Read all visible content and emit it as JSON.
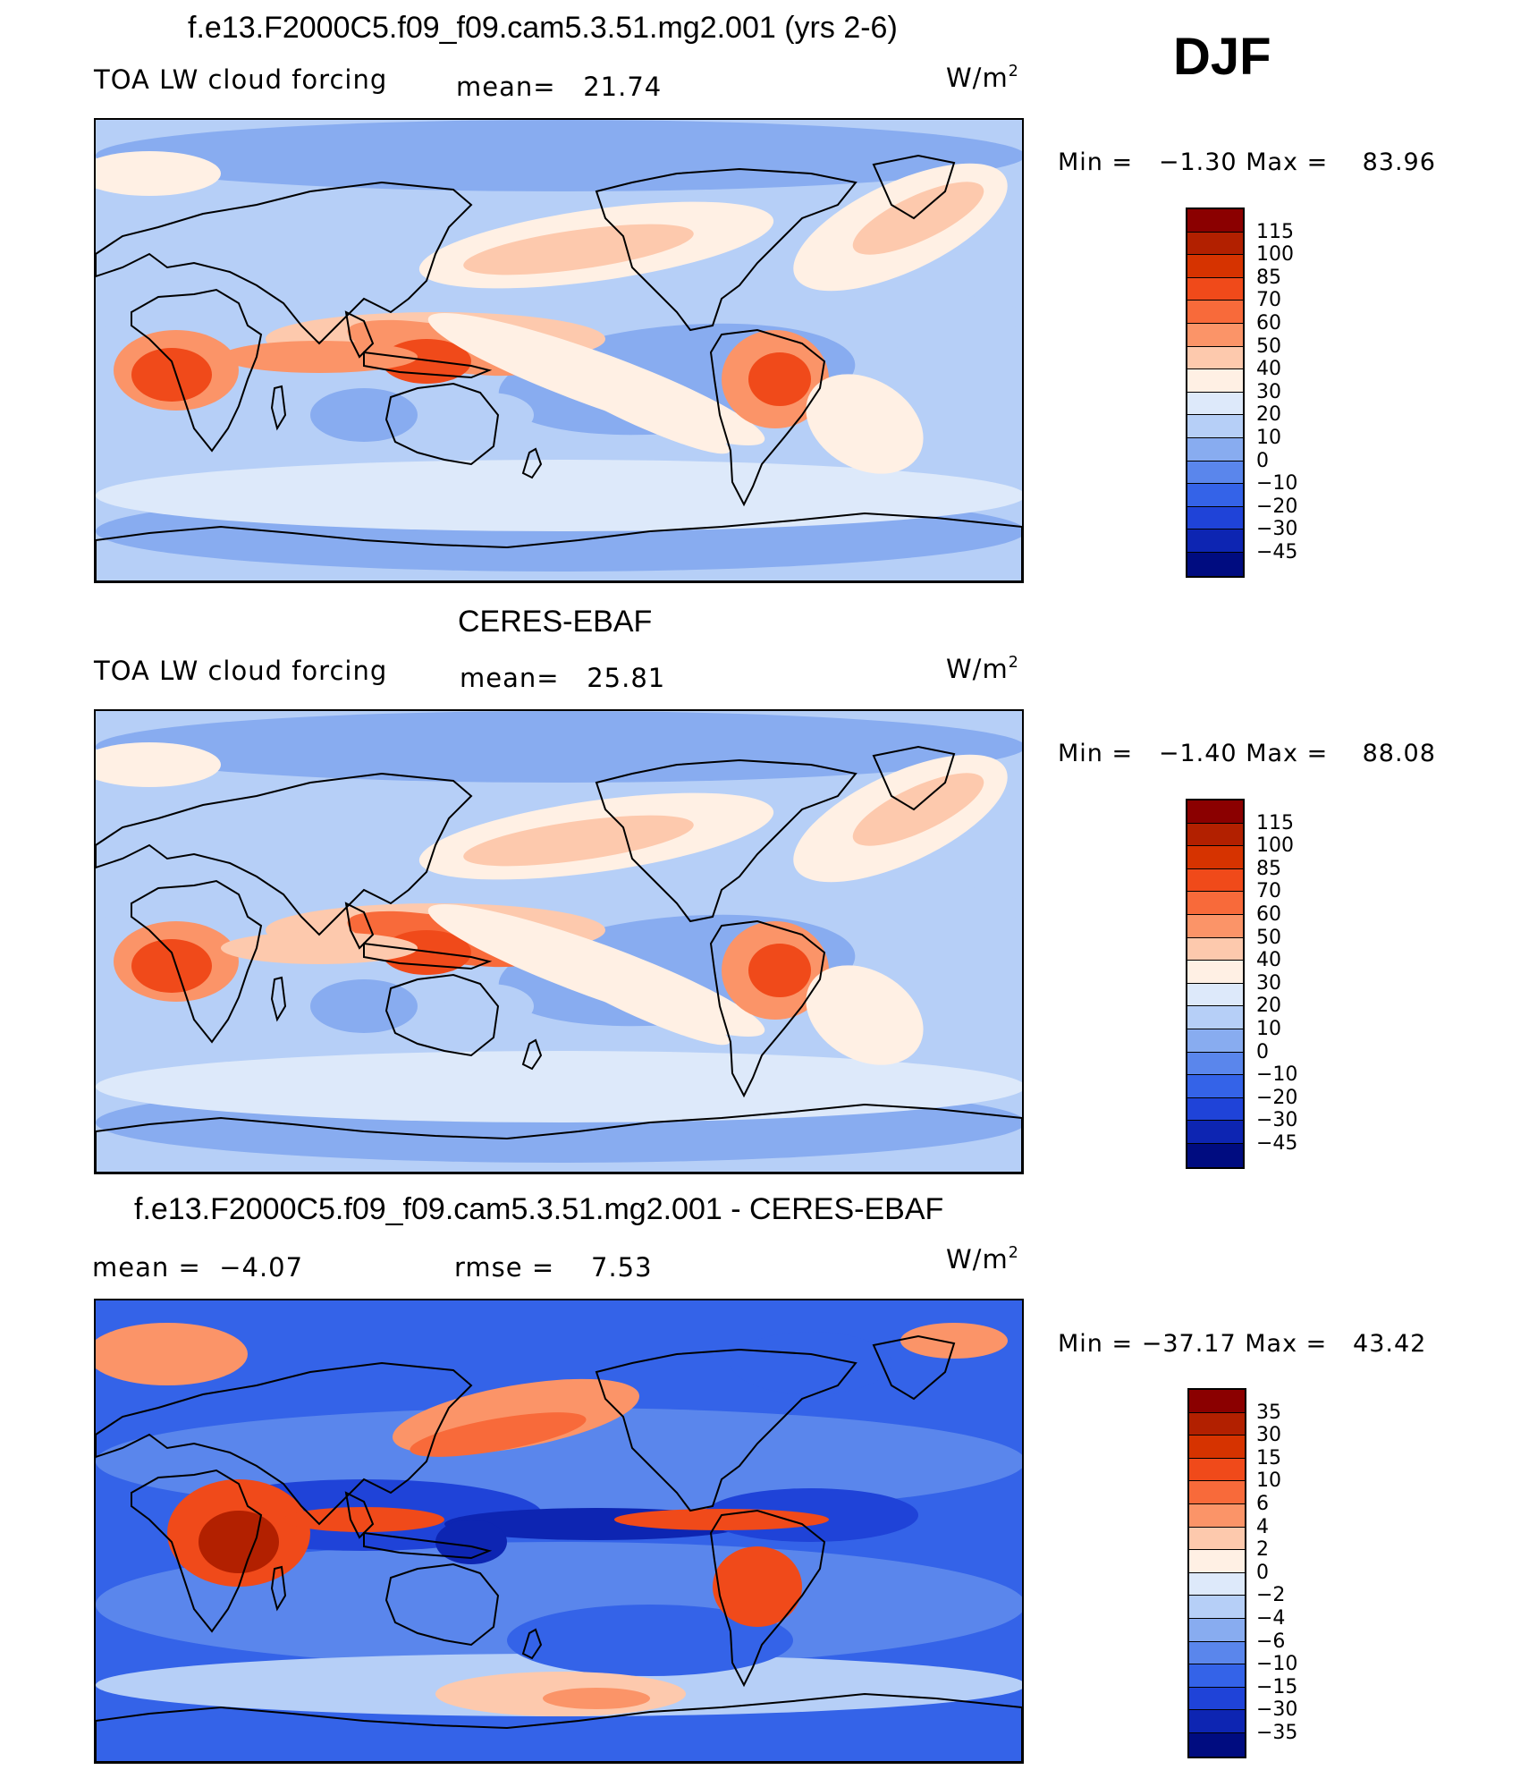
{
  "season": "DJF",
  "unit_base": "W/m",
  "unit_exp": "2",
  "panels": [
    {
      "title": "f.e13.F2000C5.f09_f09.cam5.3.51.mg2.001 (yrs 2-6)",
      "left_label": "TOA LW cloud forcing",
      "mid_label": "mean=",
      "mid_value": "21.74",
      "min_label": "Min  =",
      "min_value": "−1.30",
      "max_label": "Max  =",
      "max_value": "83.96",
      "colorbar": {
        "labels": [
          "115",
          "100",
          "85",
          "70",
          "60",
          "50",
          "40",
          "30",
          "20",
          "10",
          "0",
          "−10",
          "−20",
          "−30",
          "−45"
        ],
        "colors": [
          "#8b0000",
          "#b22000",
          "#d63300",
          "#f04a1a",
          "#f86a3a",
          "#fb9468",
          "#fdc9ad",
          "#fff0e4",
          "#dde9fa",
          "#b6cff7",
          "#88acf0",
          "#5a86ec",
          "#3463e8",
          "#1f43d8",
          "#0d25b2",
          "#000c80"
        ]
      }
    },
    {
      "title": "CERES-EBAF",
      "left_label": "TOA LW cloud forcing",
      "mid_label": "mean=",
      "mid_value": "25.81",
      "min_label": "Min  =",
      "min_value": "−1.40",
      "max_label": "Max  =",
      "max_value": "88.08",
      "colorbar": {
        "labels": [
          "115",
          "100",
          "85",
          "70",
          "60",
          "50",
          "40",
          "30",
          "20",
          "10",
          "0",
          "−10",
          "−20",
          "−30",
          "−45"
        ],
        "colors": [
          "#8b0000",
          "#b22000",
          "#d63300",
          "#f04a1a",
          "#f86a3a",
          "#fb9468",
          "#fdc9ad",
          "#fff0e4",
          "#dde9fa",
          "#b6cff7",
          "#88acf0",
          "#5a86ec",
          "#3463e8",
          "#1f43d8",
          "#0d25b2",
          "#000c80"
        ]
      }
    },
    {
      "title": "f.e13.F2000C5.f09_f09.cam5.3.51.mg2.001 - CERES-EBAF",
      "left_label": "mean  =",
      "left_value": "−4.07",
      "mid_label": "rmse  =",
      "mid_value": "7.53",
      "min_label": "Min  =",
      "min_value": "−37.17",
      "max_label": "Max  =",
      "max_value": "43.42",
      "colorbar": {
        "labels": [
          "35",
          "30",
          "15",
          "10",
          "6",
          "4",
          "2",
          "0",
          "−2",
          "−4",
          "−6",
          "−10",
          "−15",
          "−30",
          "−35"
        ],
        "colors": [
          "#8b0000",
          "#b22000",
          "#d63300",
          "#f04a1a",
          "#f86a3a",
          "#fb9468",
          "#fdc9ad",
          "#fff0e4",
          "#dde9fa",
          "#b6cff7",
          "#88acf0",
          "#5a86ec",
          "#3463e8",
          "#1f43d8",
          "#0d25b2",
          "#000c80"
        ]
      }
    }
  ],
  "chart_data": [
    {
      "type": "heatmap",
      "title": "f.e13.F2000C5.f09_f09.cam5.3.51.mg2.001 (yrs 2-6)",
      "variable": "TOA LW cloud forcing",
      "units": "W/m2",
      "mean": 21.74,
      "min": -1.3,
      "max": 83.96,
      "levels": [
        -45,
        -30,
        -20,
        -10,
        0,
        10,
        20,
        30,
        40,
        50,
        60,
        70,
        85,
        100,
        115
      ]
    },
    {
      "type": "heatmap",
      "title": "CERES-EBAF",
      "variable": "TOA LW cloud forcing",
      "units": "W/m2",
      "mean": 25.81,
      "min": -1.4,
      "max": 88.08,
      "levels": [
        -45,
        -30,
        -20,
        -10,
        0,
        10,
        20,
        30,
        40,
        50,
        60,
        70,
        85,
        100,
        115
      ]
    },
    {
      "type": "heatmap",
      "title": "f.e13.F2000C5.f09_f09.cam5.3.51.mg2.001 - CERES-EBAF",
      "units": "W/m2",
      "mean": -4.07,
      "rmse": 7.53,
      "min": -37.17,
      "max": 43.42,
      "levels": [
        -35,
        -30,
        -15,
        -10,
        -6,
        -4,
        -2,
        0,
        2,
        4,
        6,
        10,
        15,
        30,
        35
      ]
    }
  ]
}
